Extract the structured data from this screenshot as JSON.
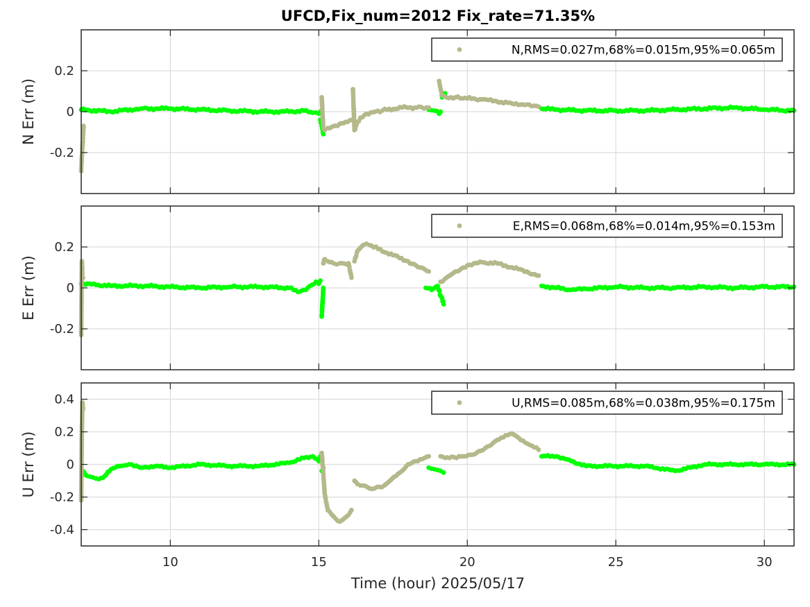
{
  "figure": {
    "title": "UFCD,Fix_num=2012 Fix_rate=71.35%",
    "xlabel": "Time (hour)  2025/05/17"
  },
  "colors": {
    "fix": "#00ff00",
    "float": "#b5b88a",
    "axis": "#262626",
    "grid": "#dcdcdc"
  },
  "chart_data": [
    {
      "type": "scatter",
      "ylabel": "N Err (m)",
      "legend": {
        "label": "N,RMS=0.027m,68%=0.015m,95%=0.065m",
        "placement": "top-right"
      },
      "xlim": [
        7,
        31
      ],
      "ylim": [
        -0.4,
        0.4
      ],
      "xticks": [
        10,
        15,
        20,
        25,
        30
      ],
      "yticks": [
        0.2,
        0,
        -0.2
      ],
      "ytick_labels": [
        "0.2",
        "0",
        "-0.2"
      ],
      "grid": true,
      "series": [
        {
          "name": "Fix",
          "color": "#00ff00",
          "segments": [
            {
              "x": [
                7.0,
                8.0,
                9.0,
                10.0,
                11.0,
                12.0,
                13.0,
                14.0,
                14.5,
                14.8,
                15.0,
                15.05
              ],
              "y": [
                0.01,
                0.0,
                0.015,
                0.015,
                0.01,
                0.005,
                0.0,
                0.0,
                0.005,
                -0.005,
                -0.01,
                0.0
              ]
            },
            {
              "x": [
                15.05,
                15.1,
                15.15
              ],
              "y": [
                -0.04,
                -0.07,
                -0.11
              ]
            },
            {
              "x": [
                18.7,
                18.9,
                19.05,
                19.1
              ],
              "y": [
                0.01,
                0.005,
                -0.01,
                0.0
              ]
            },
            {
              "x": [
                19.15,
                19.2,
                19.25
              ],
              "y": [
                0.07,
                0.08,
                0.09
              ]
            },
            {
              "x": [
                22.5,
                23.0,
                24.0,
                25.0,
                26.0,
                27.0,
                28.0,
                29.0,
                30.0,
                31.0
              ],
              "y": [
                0.015,
                0.01,
                0.005,
                0.005,
                0.005,
                0.01,
                0.015,
                0.02,
                0.01,
                0.005
              ]
            }
          ]
        },
        {
          "name": "Float",
          "color": "#b5b88a",
          "segments": [
            {
              "x": [
                7.0,
                7.02,
                7.04,
                7.06,
                7.08
              ],
              "y": [
                -0.29,
                -0.22,
                -0.18,
                -0.13,
                -0.07
              ]
            },
            {
              "x": [
                15.1,
                15.15,
                15.2,
                15.3,
                15.5,
                15.7,
                15.9,
                16.1
              ],
              "y": [
                0.07,
                -0.08,
                -0.09,
                -0.08,
                -0.07,
                -0.06,
                -0.05,
                -0.04
              ]
            },
            {
              "x": [
                16.15,
                16.2,
                16.25,
                16.3,
                16.4,
                16.6,
                16.9,
                17.3,
                17.8,
                18.3,
                18.7
              ],
              "y": [
                0.11,
                -0.09,
                -0.07,
                -0.05,
                -0.03,
                -0.01,
                0.0,
                0.01,
                0.02,
                0.02,
                0.02
              ]
            },
            {
              "x": [
                19.05,
                19.1,
                19.15,
                19.3,
                19.6,
                20.0,
                20.5,
                21.0,
                21.5,
                22.0,
                22.4
              ],
              "y": [
                0.15,
                0.11,
                0.08,
                0.07,
                0.07,
                0.065,
                0.06,
                0.05,
                0.04,
                0.035,
                0.025
              ]
            }
          ]
        }
      ]
    },
    {
      "type": "scatter",
      "ylabel": "E Err (m)",
      "legend": {
        "label": "E,RMS=0.068m,68%=0.014m,95%=0.153m",
        "placement": "top-right"
      },
      "xlim": [
        7,
        31
      ],
      "ylim": [
        -0.4,
        0.4
      ],
      "xticks": [
        10,
        15,
        20,
        25,
        30
      ],
      "yticks": [
        0.2,
        0,
        -0.2
      ],
      "ytick_labels": [
        "0.2",
        "0",
        "-0.2"
      ],
      "grid": true,
      "series": [
        {
          "name": "Fix",
          "color": "#00ff00",
          "segments": [
            {
              "x": [
                7.0,
                7.5,
                8.0,
                9.0,
                10.0,
                11.0,
                12.0,
                13.0,
                14.0,
                14.3,
                14.5,
                14.7,
                14.9,
                15.0,
                15.05
              ],
              "y": [
                0.02,
                0.015,
                0.01,
                0.01,
                0.005,
                0.0,
                0.005,
                0.005,
                0.0,
                -0.02,
                -0.01,
                0.01,
                0.03,
                0.02,
                0.035
              ]
            },
            {
              "x": [
                15.1,
                15.15
              ],
              "y": [
                -0.14,
                0.0
              ]
            },
            {
              "x": [
                18.6,
                18.8,
                19.0,
                19.1,
                19.15,
                19.2
              ],
              "y": [
                0.0,
                -0.01,
                0.01,
                -0.04,
                -0.05,
                -0.08
              ]
            },
            {
              "x": [
                22.5,
                23.0,
                23.5,
                24.0,
                25.0,
                26.0,
                27.0,
                28.0,
                29.0,
                30.0,
                31.0
              ],
              "y": [
                0.01,
                0.0,
                -0.01,
                -0.005,
                0.005,
                0.0,
                0.0,
                0.005,
                0.0,
                0.005,
                0.005
              ]
            }
          ]
        },
        {
          "name": "Float",
          "color": "#b5b88a",
          "segments": [
            {
              "x": [
                7.0,
                7.02,
                7.04,
                7.06
              ],
              "y": [
                -0.23,
                0.13,
                0.07,
                0.05
              ]
            },
            {
              "x": [
                15.15,
                15.2,
                15.3,
                15.5,
                15.7,
                16.0,
                16.1
              ],
              "y": [
                0.12,
                0.14,
                0.13,
                0.12,
                0.12,
                0.12,
                0.05
              ]
            },
            {
              "x": [
                16.2,
                16.3,
                16.5,
                16.7,
                17.0,
                17.5,
                18.0,
                18.4,
                18.7
              ],
              "y": [
                0.13,
                0.18,
                0.21,
                0.21,
                0.19,
                0.16,
                0.13,
                0.1,
                0.08
              ]
            },
            {
              "x": [
                19.1,
                19.3,
                19.6,
                20.0,
                20.5,
                21.0,
                21.5,
                22.0,
                22.4
              ],
              "y": [
                0.03,
                0.05,
                0.08,
                0.11,
                0.125,
                0.12,
                0.1,
                0.08,
                0.06
              ]
            }
          ]
        }
      ]
    },
    {
      "type": "scatter",
      "ylabel": "U Err (m)",
      "legend": {
        "label": "U,RMS=0.085m,68%=0.038m,95%=0.175m",
        "placement": "top-right"
      },
      "xlim": [
        7,
        31
      ],
      "ylim": [
        -0.5,
        0.5
      ],
      "xticks": [
        10,
        15,
        20,
        25,
        30
      ],
      "yticks": [
        0.4,
        0.2,
        0,
        -0.2,
        -0.4
      ],
      "ytick_labels": [
        "0.4",
        "0.2",
        "0",
        "-0.2",
        "-0.4"
      ],
      "grid": true,
      "series": [
        {
          "name": "Fix",
          "color": "#00ff00",
          "segments": [
            {
              "x": [
                7.05,
                7.2,
                7.4,
                7.6,
                7.8,
                8.0,
                8.3,
                8.7,
                9.0,
                9.5,
                10.0,
                11.0,
                12.0,
                13.0,
                14.0,
                14.5,
                14.8,
                15.0,
                15.05
              ],
              "y": [
                -0.04,
                -0.07,
                -0.08,
                -0.09,
                -0.07,
                -0.03,
                -0.01,
                0.0,
                -0.02,
                -0.01,
                -0.02,
                0.0,
                -0.01,
                -0.01,
                0.01,
                0.04,
                0.05,
                0.02,
                0.05
              ]
            },
            {
              "x": [
                15.1,
                15.15
              ],
              "y": [
                -0.04,
                -0.02
              ]
            },
            {
              "x": [
                18.7,
                18.9,
                19.1,
                19.2
              ],
              "y": [
                -0.02,
                -0.03,
                -0.04,
                -0.05
              ]
            },
            {
              "x": [
                22.5,
                23.0,
                23.5,
                24.0,
                25.0,
                26.0,
                27.0,
                27.5,
                28.0,
                29.0,
                30.0,
                31.0
              ],
              "y": [
                0.05,
                0.05,
                0.02,
                -0.01,
                -0.01,
                -0.01,
                -0.04,
                -0.02,
                0.0,
                0.0,
                0.0,
                0.0
              ]
            }
          ]
        },
        {
          "name": "Float",
          "color": "#b5b88a",
          "segments": [
            {
              "x": [
                7.0,
                7.02,
                7.04,
                7.06
              ],
              "y": [
                -0.22,
                0.2,
                0.38,
                0.34
              ]
            },
            {
              "x": [
                15.1,
                15.2,
                15.3,
                15.5,
                15.7,
                16.0,
                16.1
              ],
              "y": [
                0.07,
                -0.18,
                -0.28,
                -0.32,
                -0.35,
                -0.31,
                -0.28
              ]
            },
            {
              "x": [
                16.2,
                16.3,
                16.5,
                16.8,
                17.2,
                17.6,
                18.0,
                18.4,
                18.7
              ],
              "y": [
                -0.1,
                -0.12,
                -0.13,
                -0.15,
                -0.13,
                -0.07,
                0.0,
                0.03,
                0.05
              ]
            },
            {
              "x": [
                19.1,
                19.4,
                19.8,
                20.2,
                20.6,
                21.0,
                21.5,
                21.8,
                22.1,
                22.4
              ],
              "y": [
                0.05,
                0.04,
                0.05,
                0.06,
                0.1,
                0.15,
                0.19,
                0.15,
                0.12,
                0.09
              ]
            }
          ]
        }
      ]
    }
  ]
}
